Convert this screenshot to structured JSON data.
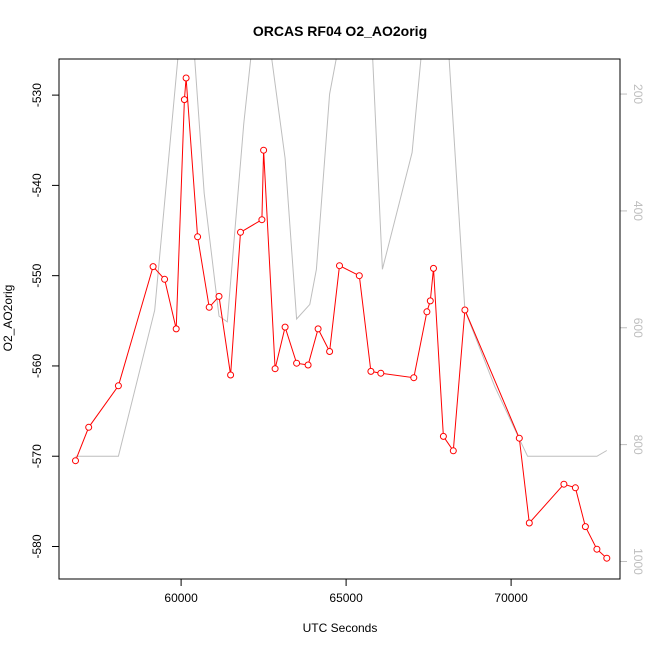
{
  "chart_data": {
    "type": "line",
    "title": "ORCAS RF04 O2_AO2orig",
    "xlabel": "UTC Seconds",
    "ylabel": "O2_AO2orig",
    "xlim": [
      56300,
      73300
    ],
    "ylim": [
      -583.6,
      -526.0
    ],
    "y2lim": [
      1030,
      140
    ],
    "x_ticks": [
      60000,
      65000,
      70000
    ],
    "x_tick_labels": [
      "60000",
      "65000",
      "70000"
    ],
    "y_ticks": [
      -530,
      -540,
      -550,
      -560,
      -570,
      -580
    ],
    "y_tick_labels": [
      "-530",
      "-540",
      "-550",
      "-560",
      "-570",
      "-580"
    ],
    "y2_ticks": [
      200,
      400,
      600,
      800,
      1000
    ],
    "y2_tick_labels": [
      "200",
      "400",
      "600",
      "800",
      "1000"
    ],
    "grid": false,
    "series": [
      {
        "color": "#ff0000",
        "axis": "left",
        "marker": "open-circle",
        "x": [
          56800,
          57200,
          58100,
          59150,
          59500,
          59850,
          60100,
          60150,
          60500,
          60850,
          61150,
          61500,
          61800,
          62450,
          62500,
          62850,
          63150,
          63500,
          63850,
          64150,
          64500,
          64800,
          65400,
          65750,
          66050,
          67050,
          67450,
          67550,
          67650,
          67950,
          68250,
          68600,
          70250,
          70550,
          71600,
          71950,
          72250,
          72600,
          72900
        ],
        "y": [
          -570.5,
          -566.8,
          -562.2,
          -549.0,
          -550.4,
          -555.9,
          -530.5,
          -528.1,
          -545.7,
          -553.5,
          -552.3,
          -561.0,
          -545.2,
          -543.8,
          -536.1,
          -560.3,
          -555.7,
          -559.7,
          -559.9,
          -555.9,
          -558.4,
          -548.9,
          -550.0,
          -560.6,
          -560.8,
          -561.3,
          -554.0,
          -552.8,
          -549.2,
          -567.8,
          -569.4,
          -553.8,
          -568.0,
          -577.4,
          -573.1,
          -573.5,
          -577.8,
          -580.3,
          -581.3
        ]
      },
      {
        "color": "#bebebe",
        "axis": "right",
        "marker": "none",
        "x": [
          56800,
          58100,
          59200,
          59900,
          60150,
          60400,
          60700,
          61150,
          61400,
          61900,
          62300,
          62700,
          63150,
          63500,
          63900,
          64100,
          64500,
          64900,
          65400,
          65700,
          66100,
          67000,
          67300,
          67700,
          68100,
          68600,
          69500,
          70250,
          70500,
          71200,
          72000,
          72600,
          72900
        ],
        "y": [
          820,
          820,
          570,
          140,
          10,
          130,
          370,
          580,
          590,
          250,
          40,
          120,
          310,
          585,
          560,
          500,
          200,
          80,
          10,
          10,
          500,
          300,
          120,
          10,
          120,
          570,
          700,
          790,
          820,
          820,
          820,
          820,
          810
        ]
      }
    ]
  }
}
